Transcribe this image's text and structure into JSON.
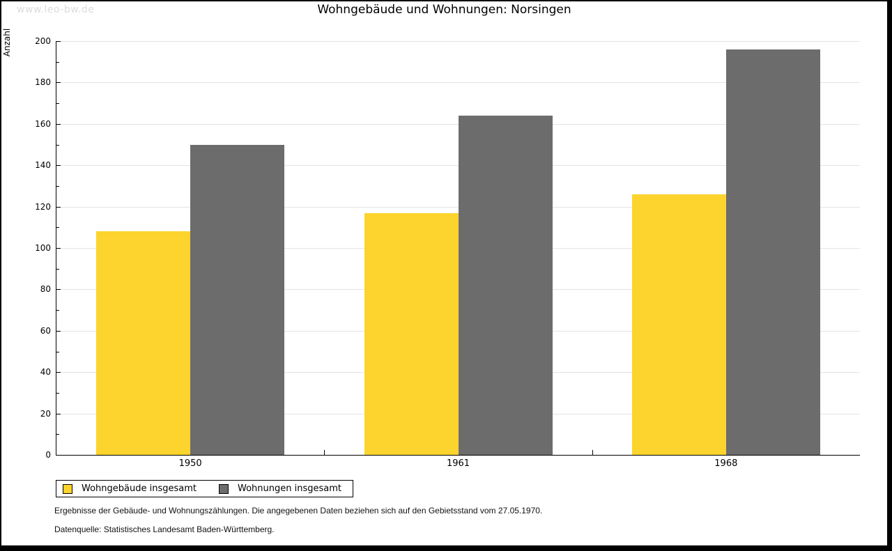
{
  "watermark": "www.leo-bw.de",
  "chart_data": {
    "type": "bar",
    "title": "Wohngebäude und Wohnungen: Norsingen",
    "categories": [
      "1950",
      "1961",
      "1968"
    ],
    "series": [
      {
        "name": "Wohngebäude insgesamt",
        "color": "#FCD42D",
        "values": [
          108,
          117,
          126
        ]
      },
      {
        "name": "Wohnungen insgesamt",
        "color": "#6C6C6C",
        "values": [
          150,
          164,
          196
        ]
      }
    ],
    "xlabel": "",
    "ylabel": "Anzahl",
    "ylim": [
      0,
      200
    ],
    "ytick_step": 20,
    "yminor_step": 10,
    "grid": true,
    "gridline_color": "#e4e4e4",
    "legend_position": "bottom-left"
  },
  "footnotes": [
    "Ergebnisse der Gebäude- und Wohnungszählungen. Die angegebenen Daten beziehen sich auf den Gebietsstand vom 27.05.1970.",
    "Datenquelle: Statistisches Landesamt Baden-Württemberg."
  ]
}
